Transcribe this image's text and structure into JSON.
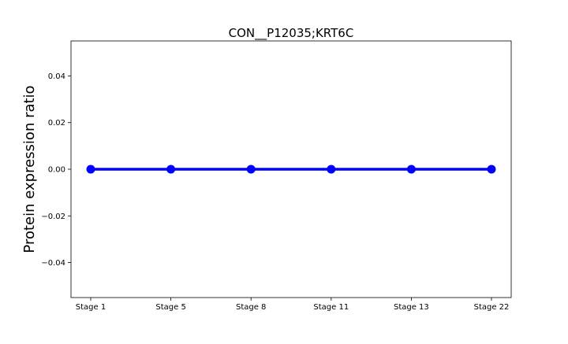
{
  "chart_data": {
    "type": "line",
    "title": "CON__P12035;KRT6C",
    "xlabel": "",
    "ylabel": "Protein expression ratio",
    "categories": [
      "Stage 1",
      "Stage 5",
      "Stage 8",
      "Stage 11",
      "Stage 13",
      "Stage 22"
    ],
    "series": [
      {
        "values": [
          0.0,
          0.0,
          0.0,
          0.0,
          0.0,
          0.0
        ],
        "color": "#0000ff"
      }
    ],
    "ylim": [
      -0.055,
      0.055
    ],
    "yticks": [
      -0.04,
      -0.02,
      0.0,
      0.02,
      0.04
    ],
    "ytick_labels": [
      "−0.04",
      "−0.02",
      "0.00",
      "0.02",
      "0.04"
    ],
    "grid": false,
    "legend": "none"
  }
}
